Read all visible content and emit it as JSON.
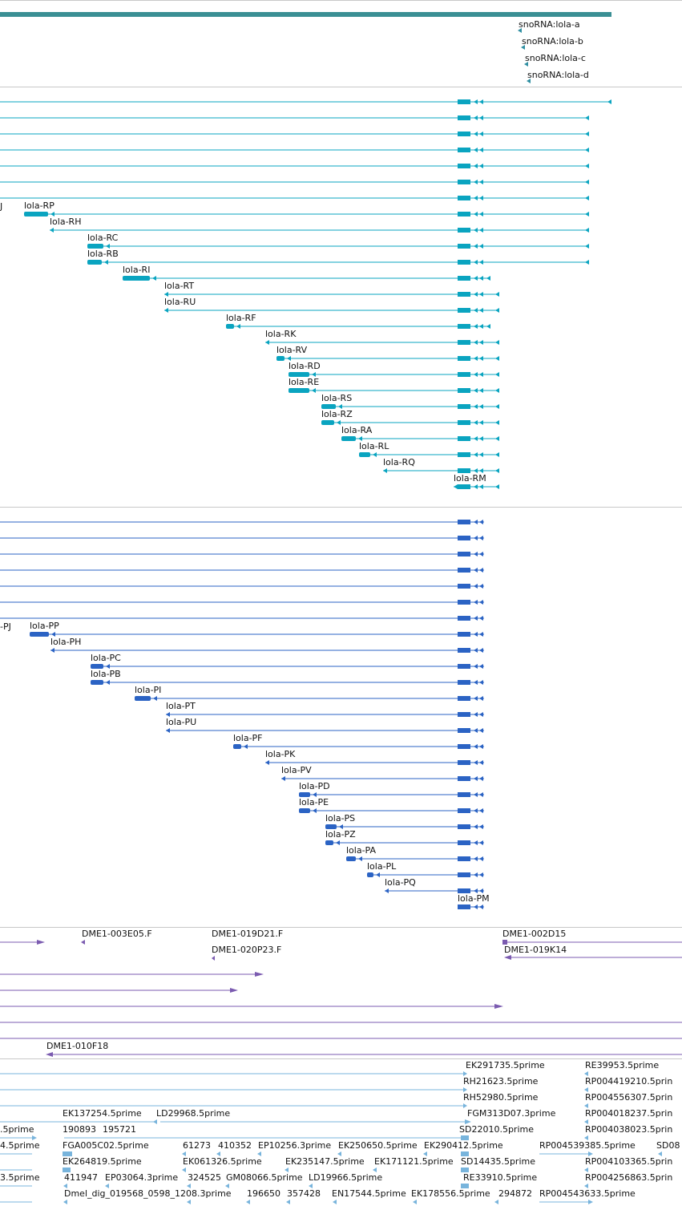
{
  "colors": {
    "background": "#ffffff",
    "gene_bar": "#3a8f94",
    "snorna": "#2f8fa2",
    "transcripts_r": "#0aa4c0",
    "proteins_p": "#2b63c4",
    "bac_clones": "#7b5bb0",
    "est_reads": "#78b4dc",
    "separator": "#c8c8c8"
  },
  "snorna_track": {
    "items": [
      {
        "label": "snoRNA:lola-a"
      },
      {
        "label": "snoRNA:lola-b"
      },
      {
        "label": "snoRNA:lola-c"
      },
      {
        "label": "snoRNA:lola-d"
      }
    ]
  },
  "transcript_track": {
    "top_unlabeled_rows": 7,
    "edge_label": "J",
    "rows": [
      {
        "label": "lola-RP"
      },
      {
        "label": "lola-RH"
      },
      {
        "label": "lola-RC"
      },
      {
        "label": "lola-RB"
      },
      {
        "label": "lola-RI"
      },
      {
        "label": "lola-RT"
      },
      {
        "label": "lola-RU"
      },
      {
        "label": "lola-RF"
      },
      {
        "label": "lola-RK"
      },
      {
        "label": "lola-RV"
      },
      {
        "label": "lola-RD"
      },
      {
        "label": "lola-RE"
      },
      {
        "label": "lola-RS"
      },
      {
        "label": "lola-RZ"
      },
      {
        "label": "lola-RA"
      },
      {
        "label": "lola-RL"
      },
      {
        "label": "lola-RQ"
      },
      {
        "label": "lola-RM"
      }
    ]
  },
  "protein_track": {
    "top_unlabeled_rows": 7,
    "edge_label": "-PJ",
    "rows": [
      {
        "label": "lola-PP"
      },
      {
        "label": "lola-PH"
      },
      {
        "label": "lola-PC"
      },
      {
        "label": "lola-PB"
      },
      {
        "label": "lola-PI"
      },
      {
        "label": "lola-PT"
      },
      {
        "label": "lola-PU"
      },
      {
        "label": "lola-PF"
      },
      {
        "label": "lola-PK"
      },
      {
        "label": "lola-PV"
      },
      {
        "label": "lola-PD"
      },
      {
        "label": "lola-PE"
      },
      {
        "label": "lola-PS"
      },
      {
        "label": "lola-PZ"
      },
      {
        "label": "lola-PA"
      },
      {
        "label": "lola-PL"
      },
      {
        "label": "lola-PQ"
      },
      {
        "label": "lola-PM"
      }
    ]
  },
  "clone_track": {
    "labels": [
      {
        "id": "DME1-003E05.F"
      },
      {
        "id": "DME1-019D21.F"
      },
      {
        "id": "DME1-020P23.F"
      },
      {
        "id": "DME1-002D15"
      },
      {
        "id": "DME1-019K14"
      },
      {
        "id": "DME1-010F18"
      }
    ]
  },
  "est_track": {
    "labels": [
      {
        "text": "EK291735.5prime"
      },
      {
        "text": "RE39953.5prime"
      },
      {
        "text": "RH21623.5prime"
      },
      {
        "text": "RP004419210.5prin"
      },
      {
        "text": "RH52980.5prime"
      },
      {
        "text": "RP004556307.5prin"
      },
      {
        "text": "EK137254.5prime"
      },
      {
        "text": "LD29968.5prime"
      },
      {
        "text": "FGM313D07.3prime"
      },
      {
        "text": "RP004018237.5prin"
      },
      {
        "text": ".5prime"
      },
      {
        "text": "190893"
      },
      {
        "text": "195721"
      },
      {
        "text": "SD22010.5prime"
      },
      {
        "text": "RP004038023.5prin"
      },
      {
        "text": "4.5prime"
      },
      {
        "text": "FGA005C02.5prime"
      },
      {
        "text": "61273"
      },
      {
        "text": "410352"
      },
      {
        "text": "EP10256.3prime"
      },
      {
        "text": "EK250650.5prime"
      },
      {
        "text": "EK290412.5prime"
      },
      {
        "text": "RP004539385.5prime"
      },
      {
        "text": "SD08"
      },
      {
        "text": "EK264819.5prime"
      },
      {
        "text": "EK061326.5prime"
      },
      {
        "text": "EK235147.5prime"
      },
      {
        "text": "EK171121.5prime"
      },
      {
        "text": "SD14435.5prime"
      },
      {
        "text": "RP004103365.5prin"
      },
      {
        "text": "3.5prime"
      },
      {
        "text": "411947"
      },
      {
        "text": "EP03064.3prime"
      },
      {
        "text": "324525"
      },
      {
        "text": "GM08066.5prime"
      },
      {
        "text": "LD19966.5prime"
      },
      {
        "text": "RE33910.5prime"
      },
      {
        "text": "RP004256863.5prin"
      },
      {
        "text": "Dmel_dig_019568_0598_1208.3prime"
      },
      {
        "text": "196650"
      },
      {
        "text": "357428"
      },
      {
        "text": "EN17544.5prime"
      },
      {
        "text": "EK178556.5prime"
      },
      {
        "text": "294872"
      },
      {
        "text": "RP004543633.5prime"
      }
    ]
  }
}
